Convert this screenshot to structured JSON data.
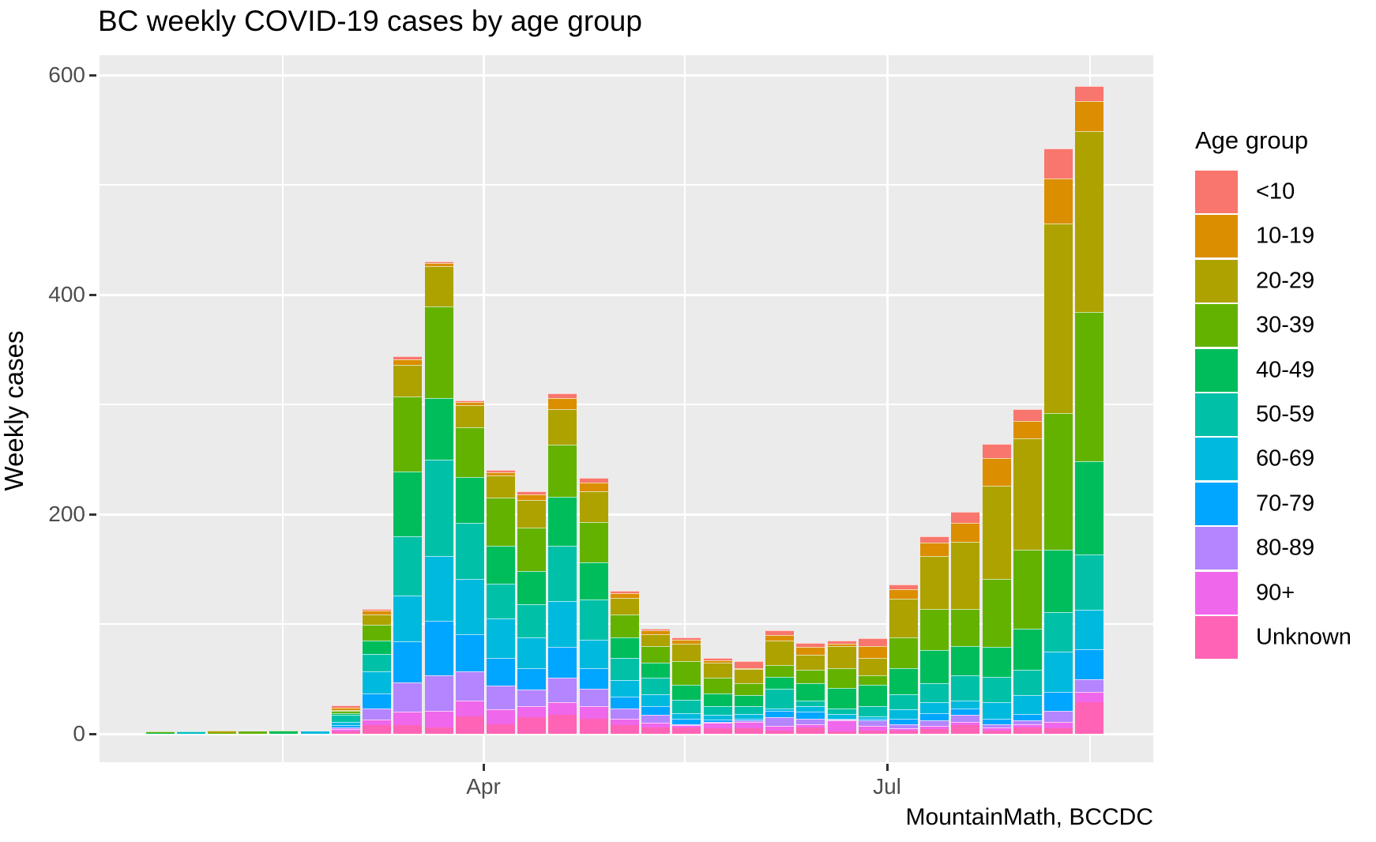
{
  "title": "BC weekly COVID-19 cases by age group",
  "caption": "MountainMath, BCCDC",
  "axes": {
    "y_label": "Weekly cases",
    "y_tick_labels": [
      "0",
      "200",
      "400",
      "600"
    ],
    "x_tick_labels": [
      "Apr",
      "Jul"
    ]
  },
  "legend": {
    "title": "Age group"
  },
  "panel_background": "#EBEBEB",
  "gridline_color": "#FFFFFF",
  "chart_data": {
    "type": "bar",
    "stacked": true,
    "title": "BC weekly COVID-19 cases by age group",
    "xlabel": "",
    "ylabel": "Weekly cases",
    "caption": "MountainMath, BCCDC",
    "ylim": [
      0,
      600
    ],
    "y_major_ticks": [
      0,
      200,
      400,
      600
    ],
    "y_minor_gridlines": [
      100,
      300,
      500
    ],
    "x_axis": "weekly dates, Jan-Aug 2020",
    "x_tick_labels": [
      "Apr",
      "Jul"
    ],
    "grid": true,
    "legend_title": "Age group",
    "legend_position": "right",
    "categories": [
      "Jan 19",
      "Jan 26",
      "Feb 2",
      "Feb 9",
      "Feb 16",
      "Feb 23",
      "Mar 1",
      "Mar 8",
      "Mar 15",
      "Mar 22",
      "Mar 29",
      "Apr 5",
      "Apr 12",
      "Apr 19",
      "Apr 26",
      "May 3",
      "May 10",
      "May 17",
      "May 24",
      "May 31",
      "Jun 7",
      "Jun 14",
      "Jun 21",
      "Jun 28",
      "Jul 5",
      "Jul 12",
      "Jul 19",
      "Jul 26",
      "Aug 2",
      "Aug 9",
      "Aug 16"
    ],
    "series": [
      {
        "name": "<10",
        "color": "#F8766D",
        "values": [
          0,
          0,
          0,
          0,
          0,
          0,
          2,
          2,
          3,
          1,
          2,
          2,
          3,
          4,
          4,
          2,
          2,
          2,
          2,
          6,
          4,
          4,
          3,
          7,
          4,
          6,
          10,
          13,
          11,
          27,
          14
        ]
      },
      {
        "name": "10-19",
        "color": "#DB8E00",
        "values": [
          0,
          0,
          0,
          0,
          0,
          0,
          2,
          3,
          5,
          3,
          3,
          3,
          5,
          10,
          8,
          4,
          3,
          4,
          2,
          1,
          5,
          7,
          2,
          11,
          9,
          12,
          17,
          25,
          16,
          41,
          27
        ]
      },
      {
        "name": "20-29",
        "color": "#AEA200",
        "values": [
          0,
          0,
          2,
          0,
          0,
          0,
          1,
          10,
          29,
          37,
          20,
          20,
          25,
          33,
          28,
          15,
          11,
          16,
          14,
          13,
          22,
          14,
          20,
          16,
          35,
          48,
          61,
          85,
          101,
          173,
          165
        ]
      },
      {
        "name": "30-39",
        "color": "#64B200",
        "values": [
          1,
          0,
          1,
          2,
          1,
          0,
          2,
          14,
          68,
          83,
          45,
          44,
          40,
          47,
          37,
          21,
          15,
          21,
          14,
          11,
          11,
          12,
          18,
          8,
          28,
          38,
          34,
          62,
          72,
          124,
          136
        ]
      },
      {
        "name": "40-49",
        "color": "#00BD5C",
        "values": [
          1,
          0,
          0,
          0,
          2,
          0,
          2,
          12,
          59,
          56,
          42,
          34,
          30,
          45,
          34,
          19,
          14,
          14,
          12,
          10,
          11,
          16,
          19,
          20,
          24,
          30,
          27,
          27,
          38,
          57,
          85
        ]
      },
      {
        "name": "50-59",
        "color": "#00C1A7",
        "values": [
          0,
          1,
          0,
          0,
          0,
          0,
          6,
          16,
          54,
          88,
          51,
          32,
          30,
          50,
          36,
          20,
          15,
          12,
          8,
          7,
          18,
          5,
          5,
          9,
          14,
          17,
          23,
          23,
          23,
          36,
          50
        ]
      },
      {
        "name": "60-69",
        "color": "#00BADE",
        "values": [
          0,
          1,
          0,
          0,
          0,
          2,
          3,
          20,
          42,
          59,
          50,
          36,
          28,
          42,
          26,
          15,
          11,
          5,
          4,
          4,
          2,
          5,
          4,
          2,
          8,
          10,
          7,
          15,
          17,
          37,
          36
        ]
      },
      {
        "name": "70-79",
        "color": "#00A6FF",
        "values": [
          0,
          0,
          0,
          0,
          0,
          0,
          2,
          14,
          37,
          50,
          34,
          25,
          20,
          28,
          19,
          11,
          8,
          5,
          2,
          2,
          6,
          6,
          1,
          2,
          5,
          7,
          6,
          5,
          6,
          17,
          27
        ]
      },
      {
        "name": "80-89",
        "color": "#B385FF",
        "values": [
          0,
          0,
          0,
          0,
          0,
          0,
          2,
          10,
          27,
          32,
          27,
          22,
          15,
          22,
          16,
          9,
          7,
          1,
          1,
          1,
          8,
          5,
          1,
          5,
          4,
          5,
          6,
          3,
          3,
          10,
          12
        ]
      },
      {
        "name": "90+",
        "color": "#EF67EB",
        "values": [
          0,
          0,
          0,
          0,
          0,
          0,
          2,
          5,
          12,
          15,
          14,
          13,
          10,
          12,
          11,
          6,
          4,
          2,
          5,
          6,
          4,
          3,
          10,
          4,
          2,
          3,
          3,
          3,
          3,
          6,
          9
        ]
      },
      {
        "name": "Unknown",
        "color": "#FF63B6",
        "values": [
          0,
          0,
          0,
          0,
          0,
          0,
          2,
          8,
          8,
          6,
          16,
          9,
          15,
          17,
          14,
          8,
          6,
          6,
          5,
          5,
          3,
          6,
          2,
          3,
          3,
          4,
          8,
          3,
          6,
          5,
          29
        ]
      }
    ]
  }
}
